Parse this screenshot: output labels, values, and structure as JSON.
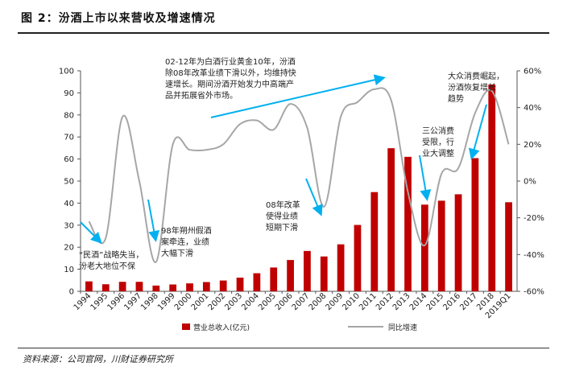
{
  "title": "图 2：汾酒上市以来营收及增速情况",
  "source": "资料来源：公司官网，川财证券研究所",
  "chart_data": {
    "type": "bar+line",
    "categories": [
      "1994",
      "1995",
      "1996",
      "1997",
      "1998",
      "1999",
      "2000",
      "2001",
      "2002",
      "2003",
      "2004",
      "2005",
      "2006",
      "2007",
      "2008",
      "2009",
      "2010",
      "2011",
      "2012",
      "2013",
      "2014",
      "2015",
      "2016",
      "2017",
      "2018",
      "2019Q1"
    ],
    "series": [
      {
        "name": "营业总收入(亿元)",
        "axis": "left",
        "kind": "bar",
        "color": "#c00000",
        "values": [
          4.5,
          3.2,
          4.3,
          4.3,
          2.6,
          3.1,
          3.6,
          4.2,
          4.9,
          6.2,
          8.2,
          10.8,
          14.2,
          18.3,
          15.8,
          21.3,
          30.1,
          45.0,
          64.9,
          61.0,
          39.3,
          41.1,
          44.0,
          60.4,
          93.8,
          40.4
        ]
      },
      {
        "name": "同比增速",
        "axis": "right",
        "kind": "line",
        "color": "#a6a6a6",
        "values": [
          -22,
          -31,
          35,
          0,
          -44,
          20,
          17,
          17,
          20,
          31,
          33,
          28,
          42,
          29,
          -14,
          35,
          43,
          50,
          44,
          -6,
          -35,
          4,
          7,
          37,
          49,
          20
        ]
      }
    ],
    "ylim_left": [
      0,
      100
    ],
    "yticks_left": [
      "0",
      "10",
      "20",
      "30",
      "40",
      "50",
      "60",
      "70",
      "80",
      "90",
      "100"
    ],
    "ylim_right": [
      -60,
      60
    ],
    "yticks_right": [
      "-60%",
      "-40%",
      "-20%",
      "0%",
      "20%",
      "40%",
      "60%"
    ],
    "legend": [
      "营业总收入(亿元)",
      "同比增速"
    ],
    "legend_position": "bottom",
    "annotations": [
      {
        "id": "a1",
        "lines": [
          "02-12年为白酒行业黄金10年，汾酒",
          "除08年改革业绩下滑以外，均维持快",
          "速增长。期间汾酒开始发力中高端产",
          "品并拓展省外市场。"
        ]
      },
      {
        "id": "a2",
        "lines": [
          "大众消费崛起，",
          "汾酒恢复增长",
          "趋势"
        ]
      },
      {
        "id": "a3",
        "lines": [
          "三公消费",
          "受限，行",
          "业大调整"
        ]
      },
      {
        "id": "a4",
        "lines": [
          "08年改革",
          "使得业绩",
          "短期下滑"
        ]
      },
      {
        "id": "a5",
        "lines": [
          "98年朔州假酒",
          "案牵连，业绩",
          "大幅下滑"
        ]
      },
      {
        "id": "a6",
        "lines": [
          "“民酒”战略失当，",
          "汾老大地位不保"
        ]
      }
    ],
    "colors": {
      "bar": "#c00000",
      "line": "#a6a6a6",
      "arrow": "#00b0f0"
    }
  }
}
